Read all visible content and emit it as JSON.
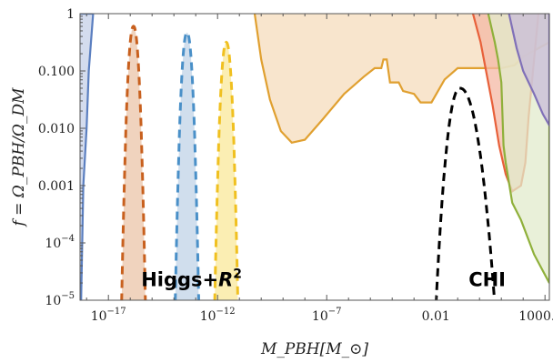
{
  "chart_data": {
    "type": "area",
    "title": "",
    "xlabel": "M_PBH[M_⊙]",
    "ylabel": "f = Ω_PBH/Ω_DM",
    "xscale": "log",
    "yscale": "log",
    "xlim_log10": [
      -18.3,
      3.2
    ],
    "ylim_log10": [
      -5,
      0
    ],
    "grid": false,
    "legend": "none",
    "x_ticks": [
      {
        "log10": -17,
        "label": "10",
        "sup": "−17"
      },
      {
        "log10": -12,
        "label": "10",
        "sup": "−12"
      },
      {
        "log10": -7,
        "label": "10",
        "sup": "−7"
      },
      {
        "log10": -2,
        "label": "0.01",
        "sup": ""
      },
      {
        "log10": 3,
        "label": "1000.00",
        "sup": ""
      }
    ],
    "y_ticks": [
      {
        "log10": 0,
        "label": "1",
        "sup": ""
      },
      {
        "log10": -1,
        "label": "0.100",
        "sup": ""
      },
      {
        "log10": -2,
        "label": "0.010",
        "sup": ""
      },
      {
        "log10": -3,
        "label": "0.001",
        "sup": ""
      },
      {
        "log10": -4,
        "label": "10",
        "sup": "−4"
      },
      {
        "log10": -5,
        "label": "10",
        "sup": "−5"
      }
    ],
    "annotations": [
      {
        "text": "Higgs+",
        "text2": "R",
        "sup": "2",
        "x_log10": -15.5,
        "y_log10": -4.75
      },
      {
        "text": "CHI",
        "text2": "",
        "sup": "",
        "x_log10": -0.5,
        "y_log10": -4.75
      }
    ],
    "constraints": [
      {
        "color": "#5b7fc0",
        "fill": "#c5d0e8",
        "boundary_log10": [
          [
            -18.3,
            0
          ],
          [
            -17.7,
            0
          ],
          [
            -17.9,
            -1
          ],
          [
            -18.0,
            -2
          ],
          [
            -18.15,
            -3
          ],
          [
            -18.2,
            -4
          ],
          [
            -18.25,
            -5
          ],
          [
            -18.3,
            -5
          ]
        ]
      },
      {
        "color": "#e0a030",
        "fill": "#f6dcbc",
        "boundary_log10": [
          [
            -10.3,
            0
          ],
          [
            -10.0,
            -0.8
          ],
          [
            -9.6,
            -1.5
          ],
          [
            -9.1,
            -2.05
          ],
          [
            -8.6,
            -2.25
          ],
          [
            -8.0,
            -2.2
          ],
          [
            -7.2,
            -1.85
          ],
          [
            -6.2,
            -1.4
          ],
          [
            -5.3,
            -1.1
          ],
          [
            -4.8,
            -0.95
          ],
          [
            -4.5,
            -0.95
          ],
          [
            -4.4,
            -0.8
          ],
          [
            -4.25,
            -0.8
          ],
          [
            -4.1,
            -1.2
          ],
          [
            -3.7,
            -1.2
          ],
          [
            -3.5,
            -1.35
          ],
          [
            -3.0,
            -1.4
          ],
          [
            -2.7,
            -1.55
          ],
          [
            -2.2,
            -1.55
          ],
          [
            -1.6,
            -1.15
          ],
          [
            -1.0,
            -0.95
          ],
          [
            0,
            -0.95
          ],
          [
            1.0,
            -0.95
          ],
          [
            1.6,
            -0.9
          ],
          [
            2.0,
            -0.75
          ],
          [
            3.2,
            -0.5
          ],
          [
            3.2,
            0
          ]
        ]
      },
      {
        "color": "#e8603a",
        "fill": "#f4b8a4",
        "boundary_log10": [
          [
            -0.3,
            0
          ],
          [
            0.05,
            -0.5
          ],
          [
            0.3,
            -1
          ],
          [
            0.6,
            -1.6
          ],
          [
            0.9,
            -2.3
          ],
          [
            1.2,
            -2.8
          ],
          [
            1.5,
            -3.1
          ],
          [
            1.9,
            -3.0
          ],
          [
            2.1,
            -2.6
          ],
          [
            2.25,
            -1.8
          ],
          [
            2.5,
            -0.8
          ],
          [
            2.7,
            0
          ]
        ]
      },
      {
        "color": "#8fb03a",
        "fill": "#e1ebcc",
        "boundary_log10": [
          [
            0.4,
            0
          ],
          [
            0.7,
            -0.5
          ],
          [
            0.85,
            -0.8
          ],
          [
            1.0,
            -1.2
          ],
          [
            1.1,
            -2.3
          ],
          [
            1.2,
            -2.6
          ],
          [
            1.5,
            -3.3
          ],
          [
            1.9,
            -3.6
          ],
          [
            2.5,
            -4.2
          ],
          [
            3.2,
            -4.7
          ],
          [
            3.2,
            0
          ]
        ]
      },
      {
        "color": "#8070b8",
        "fill": "#c8bcd8",
        "boundary_log10": [
          [
            1.35,
            0
          ],
          [
            1.7,
            -0.6
          ],
          [
            2.0,
            -1.0
          ],
          [
            2.5,
            -1.4
          ],
          [
            2.9,
            -1.75
          ],
          [
            3.2,
            -1.95
          ],
          [
            3.2,
            0
          ]
        ]
      }
    ],
    "series": [
      {
        "color": "#c8601e",
        "fill": "#ecc8ae",
        "center_log10": -15.85,
        "halfwidth_log10": 0.58,
        "peak_log10": -0.22
      },
      {
        "color": "#4a90c8",
        "fill": "#c4d6e8",
        "center_log10": -13.4,
        "halfwidth_log10": 0.58,
        "peak_log10": -0.33
      },
      {
        "color": "#f0c020",
        "fill": "#faeaa0",
        "center_log10": -11.6,
        "halfwidth_log10": 0.58,
        "peak_log10": -0.5
      },
      {
        "color": "#000000",
        "fill": "none",
        "center_log10": -0.6,
        "halfwidth_log10": 1.6,
        "peak_log10": -1.3,
        "peak_x_log10": -0.9
      }
    ]
  }
}
